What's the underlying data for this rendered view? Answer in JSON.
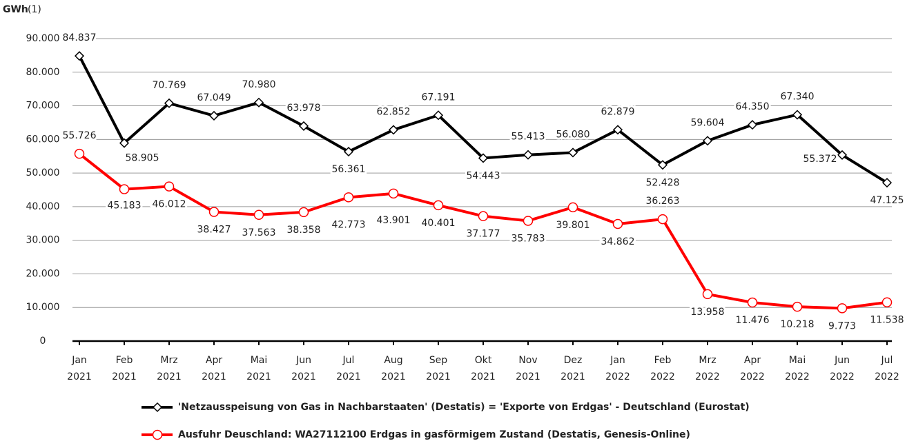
{
  "chart_data": {
    "type": "line",
    "ylabel": "GWh",
    "ylabel_note": "(1)",
    "categories": [
      "Jan 2021",
      "Feb 2021",
      "Mrz 2021",
      "Apr 2021",
      "Mai 2021",
      "Jun 2021",
      "Jul 2021",
      "Aug 2021",
      "Sep 2021",
      "Okt 2021",
      "Nov 2021",
      "Dez 2021",
      "Jan 2022",
      "Feb 2022",
      "Mrz 2022",
      "Apr 2022",
      "Mai 2022",
      "Jun 2022",
      "Jul 2022"
    ],
    "series": [
      {
        "name": "'Netzausspeisung von Gas in Nachbarstaaten' (Destatis) = 'Exporte von Erdgas' -  Deutschland (Eurostat)",
        "color": "#000000",
        "marker": "diamond",
        "values": [
          84837,
          58905,
          70769,
          67049,
          70980,
          63978,
          56361,
          62852,
          67191,
          54443,
          55413,
          56080,
          62879,
          52428,
          59604,
          64350,
          67340,
          55372,
          47125
        ],
        "value_labels": [
          "84.837",
          "58.905",
          "70.769",
          "67.049",
          "70.980",
          "63.978",
          "56.361",
          "62.852",
          "67.191",
          "54.443",
          "55.413",
          "56.080",
          "62.879",
          "52.428",
          "59.604",
          "64.350",
          "67.340",
          "55.372",
          "47.125"
        ]
      },
      {
        "name": "Ausfuhr Deuschland:  WA27112100 Erdgas in gasförmigem Zustand (Destatis, Genesis-Online)",
        "color": "#ff0000",
        "marker": "circle",
        "values": [
          55726,
          45183,
          46012,
          38427,
          37563,
          38358,
          42773,
          43901,
          40401,
          37177,
          35783,
          39801,
          34862,
          36263,
          13958,
          11476,
          10218,
          9773,
          11538
        ],
        "value_labels": [
          "55.726",
          "45.183",
          "46.012",
          "38.427",
          "37.563",
          "38.358",
          "42.773",
          "43.901",
          "40.401",
          "37.177",
          "35.783",
          "39.801",
          "34.862",
          "36.263",
          "13.958",
          "11.476",
          "10.218",
          "9.773",
          "11.538"
        ]
      }
    ],
    "ylim": [
      0,
      90000
    ],
    "yticks": [
      0,
      {
        "value": 10000,
        "label": "10.000"
      },
      {
        "value": 20000,
        "label": "20.000"
      },
      {
        "value": 30000,
        "label": "30.000"
      },
      {
        "value": 40000,
        "label": "40.000"
      },
      {
        "value": 50000,
        "label": "50.000"
      },
      {
        "value": 60000,
        "label": "60.000"
      },
      {
        "value": 70000,
        "label": "70.000"
      },
      {
        "value": 80000,
        "label": "80.000"
      },
      {
        "value": 90000,
        "label": "90.000"
      }
    ],
    "grid": true
  }
}
